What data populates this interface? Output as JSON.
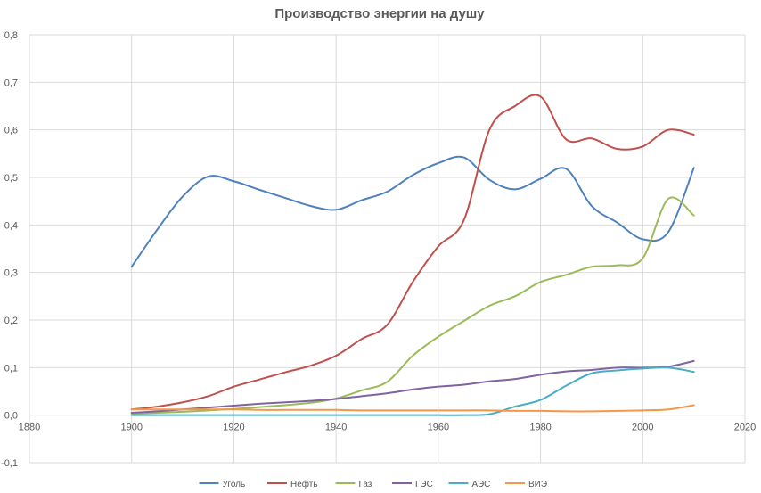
{
  "chart_data": {
    "type": "line",
    "title": "Производство энергии на душу",
    "xlabel": "",
    "ylabel": "",
    "xlim": [
      1880,
      2020
    ],
    "ylim": [
      -0.1,
      0.8
    ],
    "x_ticks": [
      1880,
      1900,
      1920,
      1940,
      1960,
      1980,
      2000,
      2020
    ],
    "x_tick_labels": [
      "1880",
      "1900",
      "1920",
      "1940",
      "1960",
      "1980",
      "2000",
      "2020"
    ],
    "y_ticks": [
      -0.1,
      0.0,
      0.1,
      0.2,
      0.3,
      0.4,
      0.5,
      0.6,
      0.7,
      0.8
    ],
    "y_tick_labels": [
      "-0,1",
      "0,0",
      "0,1",
      "0,2",
      "0,3",
      "0,4",
      "0,5",
      "0,6",
      "0,7",
      "0,8"
    ],
    "grid": true,
    "legend_position": "bottom",
    "x": [
      1900,
      1905,
      1910,
      1915,
      1920,
      1925,
      1930,
      1935,
      1940,
      1945,
      1950,
      1955,
      1960,
      1965,
      1970,
      1975,
      1980,
      1985,
      1990,
      1995,
      2000,
      2005,
      2010
    ],
    "series": [
      {
        "name": "Уголь",
        "color": "#4f81bd",
        "values": [
          0.312,
          0.39,
          0.46,
          0.502,
          0.492,
          0.474,
          0.457,
          0.44,
          0.432,
          0.452,
          0.47,
          0.505,
          0.53,
          0.542,
          0.495,
          0.475,
          0.497,
          0.518,
          0.44,
          0.405,
          0.37,
          0.385,
          0.52
        ]
      },
      {
        "name": "Нефть",
        "color": "#c0504d",
        "values": [
          0.012,
          0.018,
          0.027,
          0.04,
          0.06,
          0.075,
          0.09,
          0.104,
          0.125,
          0.16,
          0.19,
          0.28,
          0.355,
          0.41,
          0.6,
          0.65,
          0.67,
          0.58,
          0.582,
          0.56,
          0.565,
          0.6,
          0.59
        ]
      },
      {
        "name": "Газ",
        "color": "#9bbb59",
        "values": [
          0.003,
          0.005,
          0.007,
          0.01,
          0.013,
          0.017,
          0.021,
          0.026,
          0.035,
          0.052,
          0.07,
          0.125,
          0.165,
          0.198,
          0.23,
          0.25,
          0.28,
          0.295,
          0.312,
          0.315,
          0.33,
          0.455,
          0.42
        ]
      },
      {
        "name": "ГЭС",
        "color": "#8064a2",
        "values": [
          0.005,
          0.008,
          0.012,
          0.016,
          0.02,
          0.024,
          0.027,
          0.03,
          0.034,
          0.04,
          0.046,
          0.054,
          0.06,
          0.064,
          0.071,
          0.076,
          0.085,
          0.092,
          0.095,
          0.1,
          0.1,
          0.102,
          0.114
        ]
      },
      {
        "name": "АЭС",
        "color": "#4bacc6",
        "values": [
          0.0,
          0.0,
          0.0,
          0.0,
          0.0,
          0.0,
          0.0,
          0.0,
          0.0,
          0.0,
          0.0,
          0.0,
          0.0,
          0.0,
          0.002,
          0.018,
          0.032,
          0.062,
          0.088,
          0.094,
          0.098,
          0.1,
          0.091
        ]
      },
      {
        "name": "ВИЭ",
        "color": "#f79646",
        "values": [
          0.012,
          0.012,
          0.012,
          0.012,
          0.012,
          0.011,
          0.011,
          0.011,
          0.011,
          0.01,
          0.01,
          0.01,
          0.01,
          0.01,
          0.01,
          0.009,
          0.009,
          0.008,
          0.008,
          0.009,
          0.01,
          0.012,
          0.021
        ]
      }
    ]
  }
}
